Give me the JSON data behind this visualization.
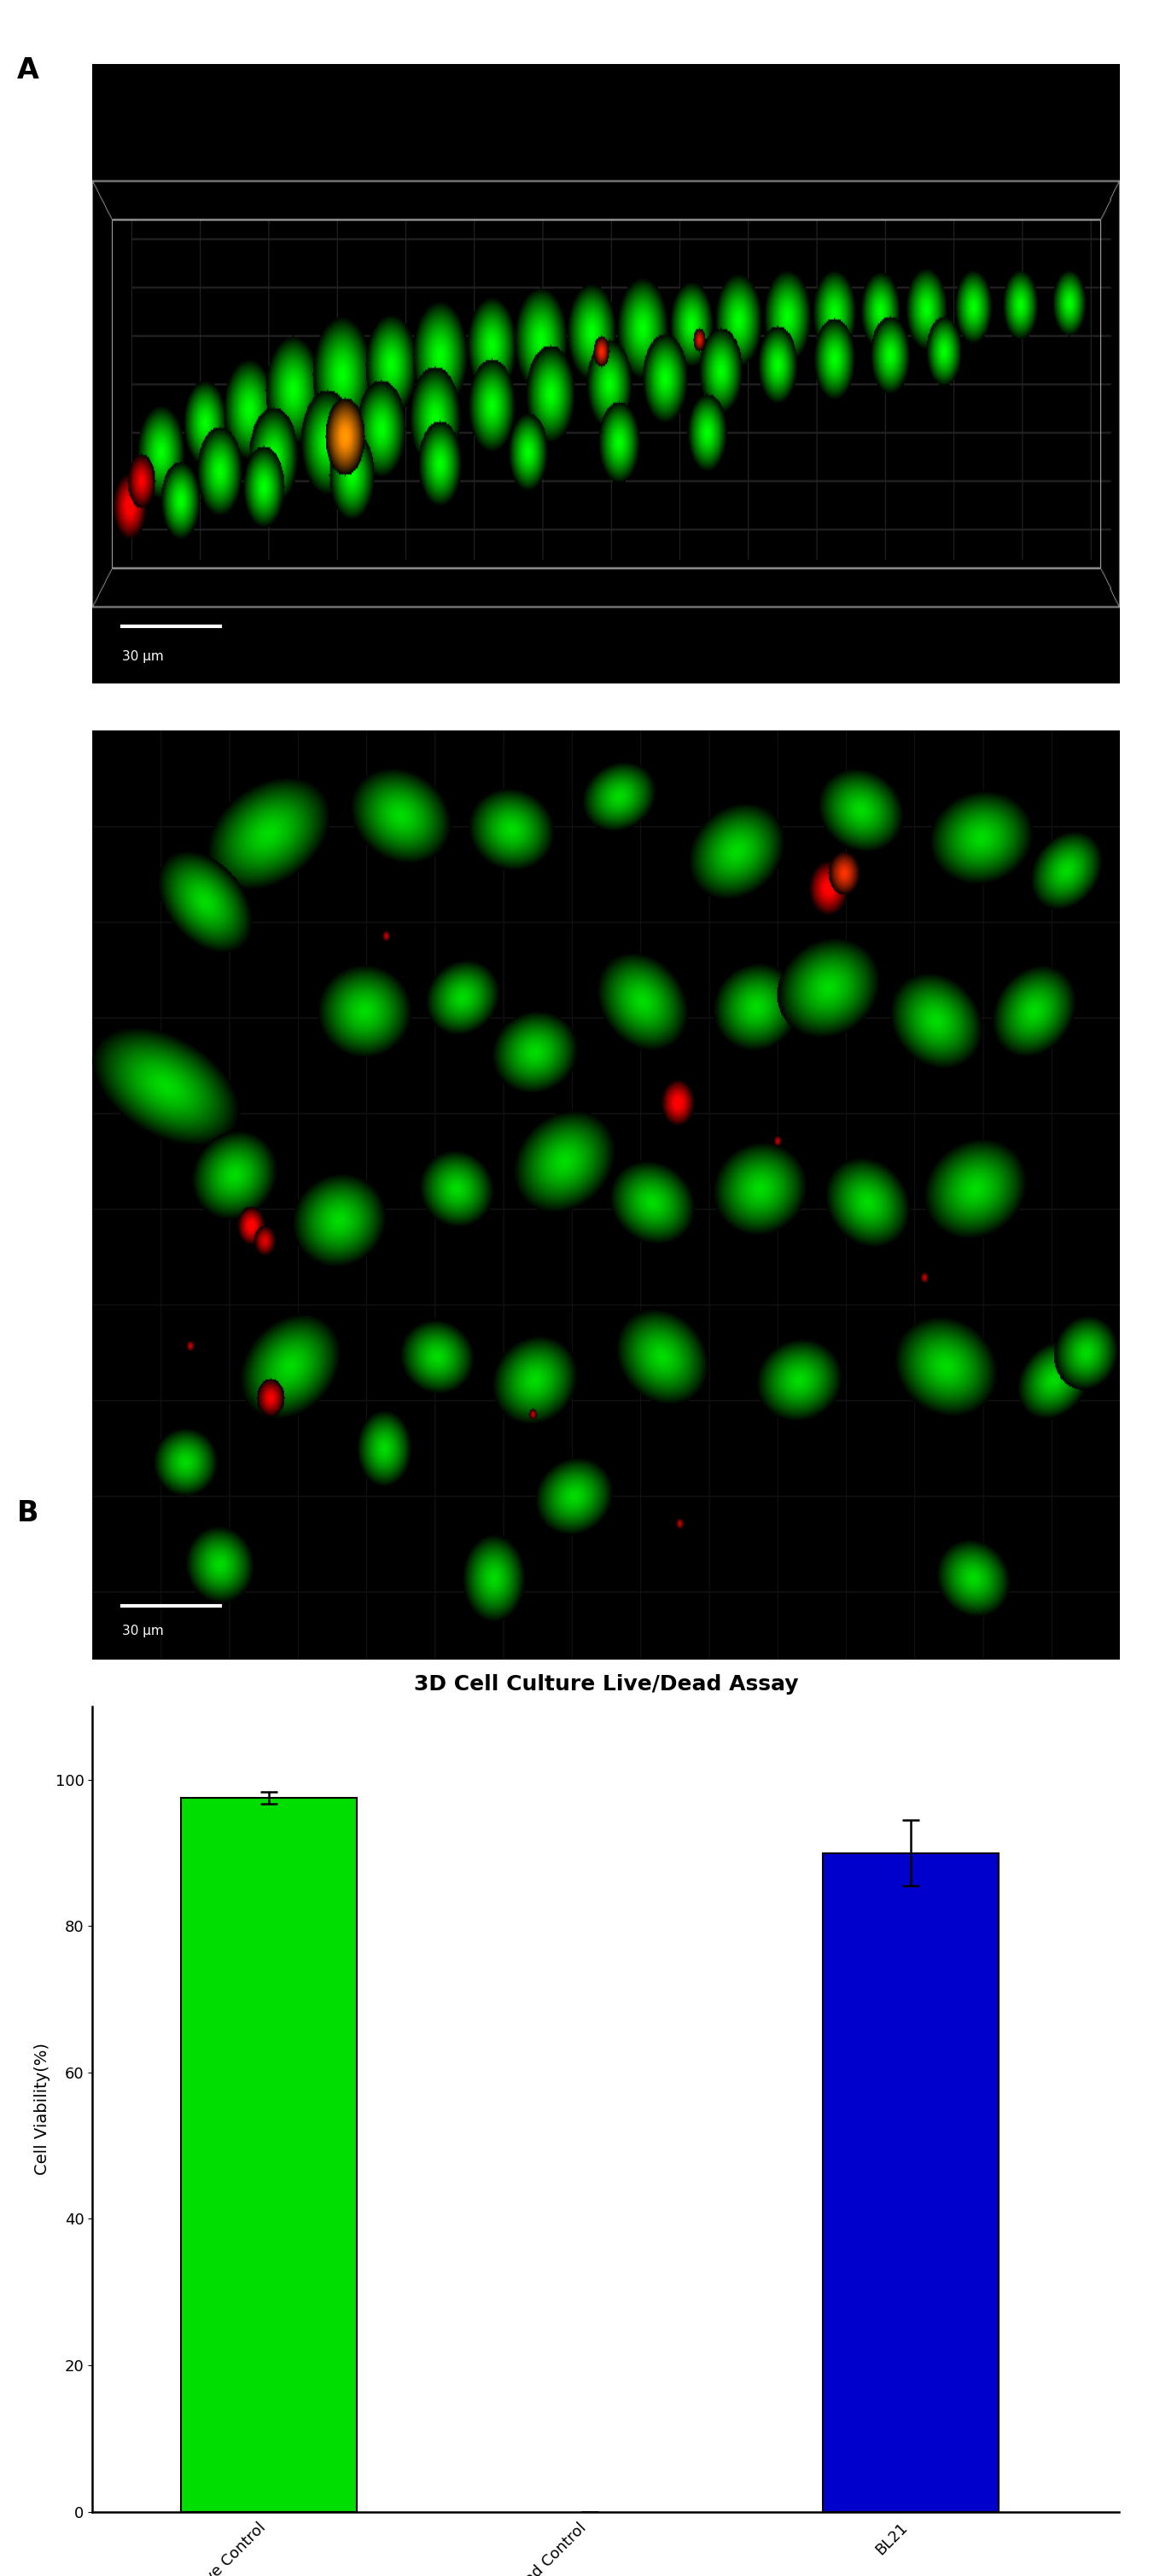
{
  "title": "3D Cell Culture Live/Dead Assay",
  "categories": [
    "Live Control",
    "Dead Control",
    "BL21"
  ],
  "values": [
    97.5,
    0,
    90.0
  ],
  "errors": [
    0.8,
    0,
    4.5
  ],
  "bar_colors": [
    "#00DD00",
    "#ffffff",
    "#0000CC"
  ],
  "ylabel": "Cell Viability(%)",
  "ylim": [
    0,
    110
  ],
  "yticks": [
    0,
    20,
    40,
    60,
    80,
    100
  ],
  "label_A": "A",
  "label_B": "B",
  "title_fontsize": 18,
  "axis_fontsize": 14,
  "tick_fontsize": 13,
  "background_color": "#ffffff",
  "scale_bar_text_top": "30 μm",
  "scale_bar_text_bottom": "30 μm"
}
